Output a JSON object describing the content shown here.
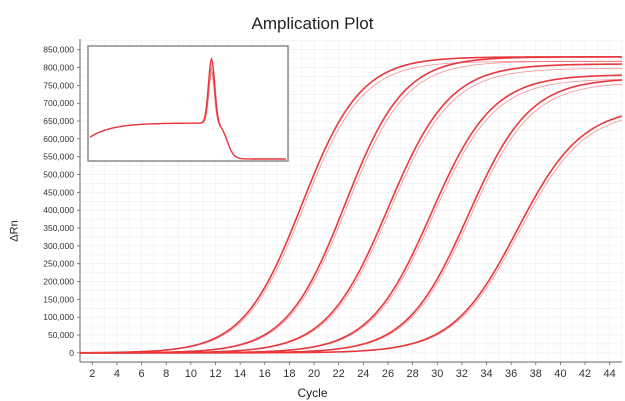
{
  "chart_data": {
    "type": "line",
    "title": "Amplication Plot",
    "xlabel": "Cycle",
    "ylabel": "ΔRn",
    "xlim": [
      1,
      45
    ],
    "ylim": [
      -20000,
      880000
    ],
    "xticks": [
      2,
      4,
      6,
      8,
      10,
      12,
      14,
      16,
      18,
      20,
      22,
      24,
      26,
      28,
      30,
      32,
      34,
      36,
      38,
      40,
      42,
      44
    ],
    "yticks": [
      0,
      50000,
      100000,
      150000,
      200000,
      250000,
      300000,
      350000,
      400000,
      450000,
      500000,
      550000,
      600000,
      650000,
      700000,
      750000,
      800000,
      850000
    ],
    "ytick_labels": [
      "0",
      "50,000",
      "100,000",
      "150,000",
      "200,000",
      "250,000",
      "300,000",
      "350,000",
      "400,000",
      "450,000",
      "500,000",
      "550,000",
      "600,000",
      "650,000",
      "700,000",
      "750,000",
      "800,000",
      "850,000"
    ],
    "grid": true,
    "line_color": "#e8383d",
    "series": [
      {
        "midpoint": 19.0,
        "plateau": 830000,
        "slope": 0.42
      },
      {
        "midpoint": 22.5,
        "plateau": 830000,
        "slope": 0.42
      },
      {
        "midpoint": 26.0,
        "plateau": 810000,
        "slope": 0.4
      },
      {
        "midpoint": 29.5,
        "plateau": 780000,
        "slope": 0.4
      },
      {
        "midpoint": 32.5,
        "plateau": 770000,
        "slope": 0.4
      },
      {
        "midpoint": 36.5,
        "plateau": 690000,
        "slope": 0.38
      }
    ],
    "inset": {
      "type": "melt-curve",
      "baseline_left": 0.2,
      "baseline_plateau": 0.33,
      "peak_position": 0.62,
      "peak_height": 0.92
    }
  }
}
